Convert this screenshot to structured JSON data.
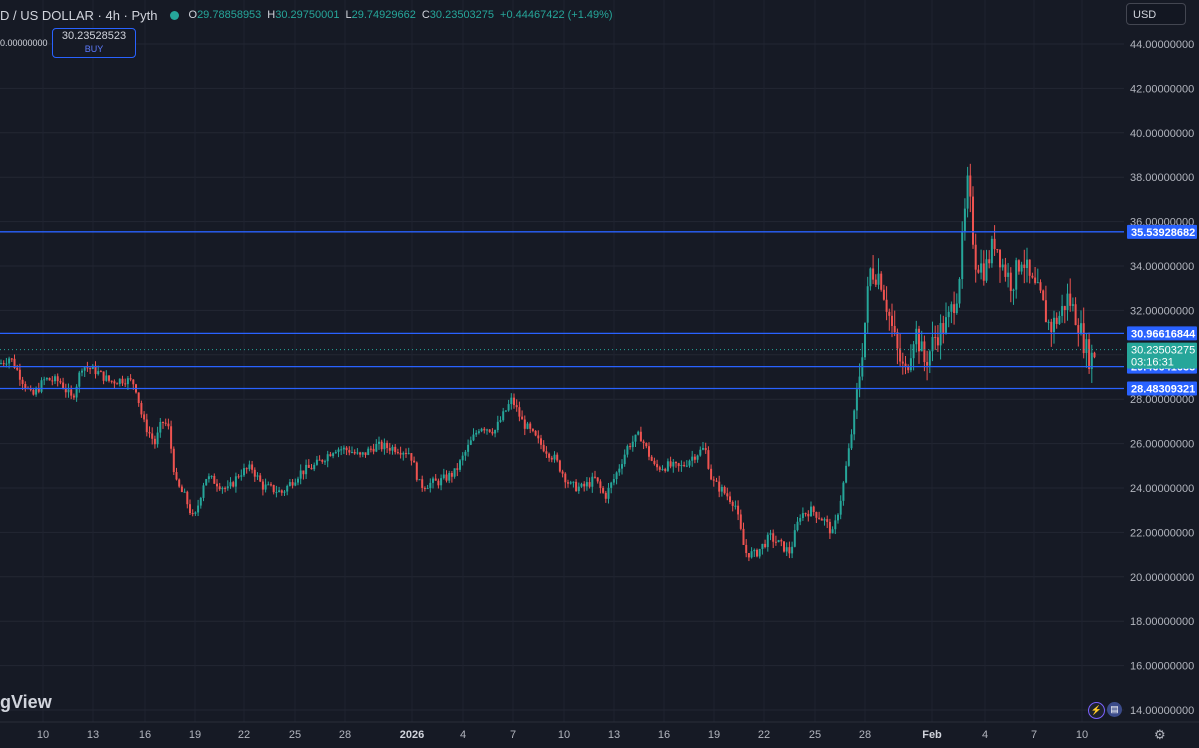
{
  "header": {
    "symbol": "D / US DOLLAR · 4h · Pyth",
    "o_key": "O",
    "o_val": "29.78858953",
    "h_key": "H",
    "h_val": "30.29750001",
    "l_key": "L",
    "l_val": "29.74929662",
    "c_key": "C",
    "c_val": "30.23503275",
    "change": "+0.44467422 (+1.49%)"
  },
  "buy_box": {
    "price": "30.23528523",
    "label": "BUY"
  },
  "left_price_label": "0.00000000",
  "currency_select": "USD",
  "brand": "gView",
  "colors": {
    "up": "#26a69a",
    "down": "#ef5350",
    "line": "#2962ff",
    "bg": "#161a25"
  },
  "chart_data": {
    "type": "candlestick",
    "timeframe": "4h",
    "ylim": [
      13.0,
      44.8
    ],
    "y_ticks": [
      "44.00000000",
      "42.00000000",
      "40.00000000",
      "38.00000000",
      "36.00000000",
      "34.00000000",
      "32.00000000",
      "30.00000000",
      "28.00000000",
      "26.00000000",
      "24.00000000",
      "22.00000000",
      "20.00000000",
      "18.00000000",
      "16.00000000",
      "14.00000000"
    ],
    "y_tick_values": [
      44,
      42,
      40,
      38,
      36,
      34,
      32,
      30,
      28,
      26,
      24,
      22,
      20,
      18,
      16,
      14
    ],
    "x_ticks": [
      "10",
      "13",
      "16",
      "19",
      "22",
      "25",
      "28",
      "2026",
      "4",
      "7",
      "10",
      "13",
      "16",
      "19",
      "22",
      "25",
      "28",
      "Feb",
      "4",
      "7",
      "10"
    ],
    "x_tick_bold": [
      "2026",
      "Feb"
    ],
    "horizontal_lines": [
      35.53928682,
      30.96616844,
      29.46641633,
      28.48309321
    ],
    "price_labels": [
      "35.53928682",
      "30.96616844",
      "29.46641633",
      "28.48309321"
    ],
    "last_price": "30.23503275",
    "last_price_value": 30.23503275,
    "countdown": "03:16:31",
    "path_keypoints": [
      [
        0,
        29.6
      ],
      [
        10,
        29.9
      ],
      [
        22,
        28.9
      ],
      [
        32,
        28.1
      ],
      [
        45,
        28.9
      ],
      [
        60,
        28.8
      ],
      [
        72,
        28.0
      ],
      [
        82,
        29.5
      ],
      [
        95,
        29.3
      ],
      [
        110,
        28.8
      ],
      [
        125,
        28.9
      ],
      [
        135,
        28.7
      ],
      [
        143,
        27.0
      ],
      [
        155,
        26.0
      ],
      [
        162,
        27.0
      ],
      [
        168,
        26.8
      ],
      [
        176,
        24.2
      ],
      [
        185,
        23.6
      ],
      [
        194,
        22.5
      ],
      [
        205,
        24.5
      ],
      [
        215,
        24.3
      ],
      [
        228,
        23.9
      ],
      [
        240,
        24.7
      ],
      [
        252,
        24.9
      ],
      [
        262,
        24.1
      ],
      [
        282,
        23.8
      ],
      [
        300,
        24.7
      ],
      [
        315,
        25.0
      ],
      [
        335,
        25.8
      ],
      [
        350,
        25.7
      ],
      [
        360,
        25.4
      ],
      [
        375,
        25.9
      ],
      [
        395,
        25.8
      ],
      [
        410,
        25.6
      ],
      [
        420,
        24.1
      ],
      [
        440,
        24.3
      ],
      [
        455,
        24.7
      ],
      [
        470,
        26.0
      ],
      [
        480,
        26.8
      ],
      [
        495,
        26.6
      ],
      [
        512,
        28.0
      ],
      [
        522,
        27.0
      ],
      [
        538,
        26.1
      ],
      [
        555,
        25.3
      ],
      [
        570,
        24.1
      ],
      [
        582,
        24.0
      ],
      [
        595,
        24.4
      ],
      [
        605,
        23.6
      ],
      [
        615,
        24.5
      ],
      [
        628,
        25.9
      ],
      [
        640,
        26.4
      ],
      [
        655,
        24.9
      ],
      [
        668,
        25.0
      ],
      [
        680,
        24.9
      ],
      [
        692,
        25.4
      ],
      [
        705,
        25.8
      ],
      [
        712,
        24.3
      ],
      [
        722,
        23.9
      ],
      [
        735,
        23.3
      ],
      [
        745,
        21.1
      ],
      [
        755,
        21.0
      ],
      [
        770,
        21.8
      ],
      [
        790,
        21.1
      ],
      [
        800,
        22.8
      ],
      [
        812,
        23.0
      ],
      [
        825,
        22.5
      ],
      [
        833,
        21.9
      ],
      [
        842,
        23.8
      ],
      [
        850,
        26.0
      ],
      [
        858,
        28.5
      ],
      [
        864,
        31.0
      ],
      [
        870,
        33.8
      ],
      [
        880,
        33.6
      ],
      [
        888,
        32.0
      ],
      [
        898,
        30.0
      ],
      [
        905,
        29.1
      ],
      [
        915,
        31.2
      ],
      [
        925,
        29.6
      ],
      [
        935,
        30.8
      ],
      [
        948,
        31.5
      ],
      [
        958,
        33.0
      ],
      [
        968,
        37.8
      ],
      [
        975,
        34.3
      ],
      [
        985,
        33.8
      ],
      [
        995,
        35.2
      ],
      [
        1003,
        34.0
      ],
      [
        1012,
        33.2
      ],
      [
        1022,
        34.5
      ],
      [
        1030,
        33.3
      ],
      [
        1040,
        32.6
      ],
      [
        1050,
        31.2
      ],
      [
        1060,
        31.8
      ],
      [
        1068,
        32.6
      ],
      [
        1078,
        31.5
      ],
      [
        1085,
        30.4
      ],
      [
        1090,
        29.8
      ],
      [
        1096,
        30.2
      ]
    ]
  }
}
